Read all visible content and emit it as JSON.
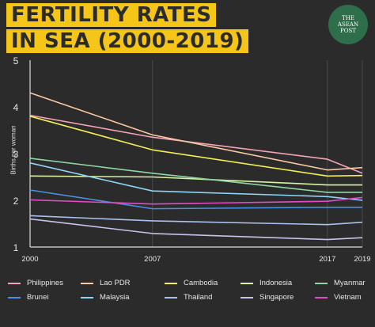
{
  "title_lines": [
    "FERTILITY RATES",
    "IN SEA (2000-2019)"
  ],
  "logo": {
    "lines": [
      "THE",
      "ASEAN",
      "POST"
    ]
  },
  "colors": {
    "background": "#2b2b2b",
    "title_bg": "#f5c518",
    "title_text": "#2b2b2b",
    "axis": "#d9d9d9",
    "grid": "#4a4a4a",
    "text": "#e6e6e6"
  },
  "chart_data": {
    "type": "line",
    "ylabel": "Births per woman",
    "xlabel": "",
    "x": [
      2000,
      2007,
      2017,
      2019
    ],
    "x_ticks": [
      "2000",
      "2007",
      "2017",
      "2019"
    ],
    "y_ticks": [
      "1",
      "2",
      "3",
      "4",
      "5"
    ],
    "ylim": [
      1,
      5
    ],
    "grid": true,
    "legend_position": "bottom",
    "series": [
      {
        "name": "Philippines",
        "color": "#f4a3b5",
        "values": [
          3.82,
          3.35,
          2.88,
          2.58
        ]
      },
      {
        "name": "Lao PDR",
        "color": "#f8c9a2",
        "values": [
          4.3,
          3.4,
          2.65,
          2.7
        ]
      },
      {
        "name": "Cambodia",
        "color": "#f2ee55",
        "values": [
          3.8,
          3.08,
          2.52,
          2.53
        ]
      },
      {
        "name": "Indonesia",
        "color": "#d6f2a2",
        "values": [
          2.52,
          2.5,
          2.33,
          2.33
        ]
      },
      {
        "name": "Myanmar",
        "color": "#8fd6a5",
        "values": [
          2.9,
          2.58,
          2.17,
          2.17
        ]
      },
      {
        "name": "Brunei",
        "color": "#4a90e2",
        "values": [
          2.22,
          1.82,
          1.85,
          1.85
        ]
      },
      {
        "name": "Malaysia",
        "color": "#8fd3f5",
        "values": [
          2.8,
          2.2,
          2.08,
          2.0
        ]
      },
      {
        "name": "Thailand",
        "color": "#a9c0f0",
        "values": [
          1.67,
          1.56,
          1.48,
          1.53
        ]
      },
      {
        "name": "Singapore",
        "color": "#c8c2ea",
        "values": [
          1.6,
          1.29,
          1.16,
          1.2
        ]
      },
      {
        "name": "Vietnam",
        "color": "#e44cc7",
        "values": [
          2.01,
          1.92,
          1.98,
          2.06
        ]
      }
    ]
  }
}
